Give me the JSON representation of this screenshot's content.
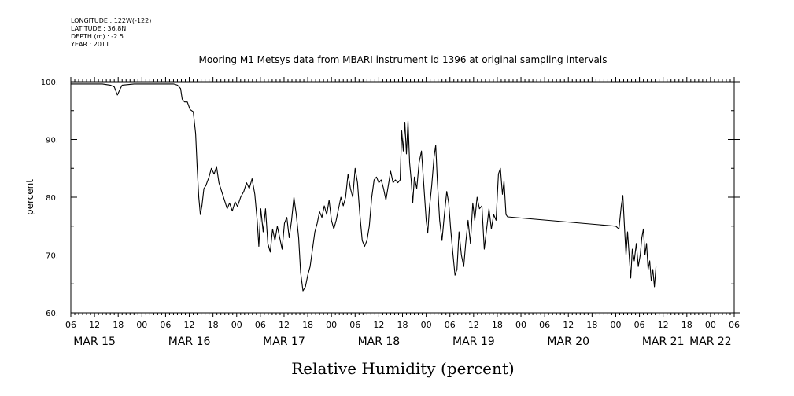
{
  "header": {
    "meta_lines": [
      "LONGITUDE : 122W(-122)",
      "LATITUDE : 36.8N",
      "DEPTH (m) : -2.5",
      "YEAR : 2011"
    ]
  },
  "chart_data": {
    "type": "line",
    "title": "Mooring M1 Metsys data from MBARI instrument id 1396 at original sampling intervals",
    "xlabel": "Relative Humidity (percent)",
    "ylabel": "percent",
    "ylim": [
      60,
      100
    ],
    "yticks": [
      60,
      70,
      80,
      90,
      100
    ],
    "ytick_labels": [
      "60.",
      "70.",
      "80.",
      "90.",
      "100."
    ],
    "x_units": "hours since MAR 15 2011 00:00",
    "xlim": [
      6,
      174
    ],
    "xticks": [
      6,
      12,
      18,
      24,
      30,
      36,
      42,
      48,
      54,
      60,
      66,
      72,
      78,
      84,
      90,
      96,
      102,
      108,
      114,
      120,
      126,
      132,
      138,
      144,
      150,
      156,
      162,
      168,
      174
    ],
    "xtick_labels": [
      "06",
      "12",
      "18",
      "00",
      "06",
      "12",
      "18",
      "00",
      "06",
      "12",
      "18",
      "00",
      "06",
      "12",
      "18",
      "00",
      "06",
      "12",
      "18",
      "00",
      "06",
      "12",
      "18",
      "00",
      "06",
      "12",
      "18",
      "00",
      "06"
    ],
    "day_labels": [
      {
        "label": "MAR 15",
        "at": 12
      },
      {
        "label": "MAR 16",
        "at": 36
      },
      {
        "label": "MAR 17",
        "at": 60
      },
      {
        "label": "MAR 18",
        "at": 84
      },
      {
        "label": "MAR 19",
        "at": 108
      },
      {
        "label": "MAR 20",
        "at": 132
      },
      {
        "label": "MAR 21",
        "at": 156
      },
      {
        "label": "MAR 22",
        "at": 168
      }
    ],
    "grid": false,
    "series": [
      {
        "points": [
          [
            6,
            99.6
          ],
          [
            10,
            99.6
          ],
          [
            14,
            99.6
          ],
          [
            16,
            99.4
          ],
          [
            17,
            99.1
          ],
          [
            17.8,
            97.7
          ],
          [
            18.4,
            98.6
          ],
          [
            19,
            99.4
          ],
          [
            22,
            99.6
          ],
          [
            26,
            99.6
          ],
          [
            30,
            99.6
          ],
          [
            32,
            99.6
          ],
          [
            33,
            99.4
          ],
          [
            33.8,
            98.8
          ],
          [
            34.2,
            97
          ],
          [
            34.8,
            96.5
          ],
          [
            35.5,
            96.5
          ],
          [
            36.2,
            95.2
          ],
          [
            37,
            94.8
          ],
          [
            37.6,
            91
          ],
          [
            38,
            85
          ],
          [
            38.4,
            80
          ],
          [
            38.8,
            77
          ],
          [
            39.2,
            78.5
          ],
          [
            39.7,
            81.5
          ],
          [
            40.2,
            82
          ],
          [
            41,
            83.5
          ],
          [
            41.6,
            85
          ],
          [
            42.3,
            84
          ],
          [
            42.9,
            85.3
          ],
          [
            43.5,
            82.5
          ],
          [
            44.2,
            81
          ],
          [
            44.9,
            79.5
          ],
          [
            45.6,
            78
          ],
          [
            46.2,
            79
          ],
          [
            46.9,
            77.6
          ],
          [
            47.6,
            79.2
          ],
          [
            48.2,
            78.4
          ],
          [
            49,
            80
          ],
          [
            49.8,
            81
          ],
          [
            50.5,
            82.5
          ],
          [
            51.2,
            81.5
          ],
          [
            51.9,
            83.2
          ],
          [
            52.6,
            80.5
          ],
          [
            53.2,
            76
          ],
          [
            53.6,
            71.5
          ],
          [
            54.1,
            78
          ],
          [
            54.7,
            74
          ],
          [
            55.3,
            78
          ],
          [
            55.9,
            72
          ],
          [
            56.5,
            70.5
          ],
          [
            57.1,
            74.5
          ],
          [
            57.7,
            72.5
          ],
          [
            58.3,
            75
          ],
          [
            58.9,
            73
          ],
          [
            59.5,
            71
          ],
          [
            60.1,
            75.5
          ],
          [
            60.7,
            76.5
          ],
          [
            61.3,
            73
          ],
          [
            61.9,
            76
          ],
          [
            62.5,
            80
          ],
          [
            63.1,
            77
          ],
          [
            63.7,
            73
          ],
          [
            64.2,
            67
          ],
          [
            64.8,
            63.8
          ],
          [
            65.4,
            64.5
          ],
          [
            66,
            66.5
          ],
          [
            66.6,
            68
          ],
          [
            67.2,
            71
          ],
          [
            67.8,
            74
          ],
          [
            68.4,
            75.5
          ],
          [
            69,
            77.5
          ],
          [
            69.6,
            76.5
          ],
          [
            70.2,
            78.5
          ],
          [
            70.8,
            77
          ],
          [
            71.4,
            79.5
          ],
          [
            72,
            76
          ],
          [
            72.6,
            74.5
          ],
          [
            73.2,
            76
          ],
          [
            73.8,
            78
          ],
          [
            74.4,
            80
          ],
          [
            75,
            78.5
          ],
          [
            75.6,
            80
          ],
          [
            76.2,
            84
          ],
          [
            76.8,
            81.5
          ],
          [
            77.4,
            80
          ],
          [
            78,
            85
          ],
          [
            78.6,
            82.5
          ],
          [
            79.2,
            77
          ],
          [
            79.8,
            72.5
          ],
          [
            80.4,
            71.5
          ],
          [
            81,
            72.5
          ],
          [
            81.6,
            75
          ],
          [
            82.2,
            80
          ],
          [
            82.8,
            83
          ],
          [
            83.4,
            83.5
          ],
          [
            84,
            82.5
          ],
          [
            84.6,
            83
          ],
          [
            85.2,
            81.5
          ],
          [
            85.8,
            79.5
          ],
          [
            86.4,
            82
          ],
          [
            87,
            84.5
          ],
          [
            87.6,
            82.5
          ],
          [
            88.2,
            83
          ],
          [
            88.8,
            82.5
          ],
          [
            89.4,
            83
          ],
          [
            89.8,
            91.5
          ],
          [
            90.2,
            88
          ],
          [
            90.6,
            93
          ],
          [
            91,
            87.5
          ],
          [
            91.4,
            93.2
          ],
          [
            91.8,
            86
          ],
          [
            92.2,
            83
          ],
          [
            92.6,
            79
          ],
          [
            93,
            83.5
          ],
          [
            93.6,
            81.5
          ],
          [
            94.2,
            86
          ],
          [
            94.8,
            88
          ],
          [
            95.4,
            82
          ],
          [
            96,
            76
          ],
          [
            96.4,
            73.8
          ],
          [
            96.8,
            78
          ],
          [
            97.4,
            82
          ],
          [
            98,
            87
          ],
          [
            98.4,
            89
          ],
          [
            98.8,
            83
          ],
          [
            99.4,
            76
          ],
          [
            100,
            72.5
          ],
          [
            100.6,
            77
          ],
          [
            101.2,
            81
          ],
          [
            101.7,
            79
          ],
          [
            102.2,
            74.5
          ],
          [
            102.8,
            70
          ],
          [
            103.3,
            66.5
          ],
          [
            103.8,
            67.5
          ],
          [
            104.3,
            74
          ],
          [
            104.9,
            70
          ],
          [
            105.5,
            68
          ],
          [
            106,
            72
          ],
          [
            106.6,
            76
          ],
          [
            107.2,
            72
          ],
          [
            107.8,
            79
          ],
          [
            108.3,
            76
          ],
          [
            108.9,
            80
          ],
          [
            109.5,
            78
          ],
          [
            110.1,
            78.5
          ],
          [
            110.7,
            71
          ],
          [
            111.3,
            74.5
          ],
          [
            111.9,
            78
          ],
          [
            112.5,
            74.5
          ],
          [
            113.1,
            77
          ],
          [
            113.7,
            76
          ],
          [
            114.3,
            84
          ],
          [
            114.8,
            85
          ],
          [
            115.3,
            80.5
          ],
          [
            115.7,
            82.8
          ],
          [
            116.2,
            77
          ],
          [
            116.6,
            76.6
          ],
          [
            144,
            75
          ],
          [
            144.8,
            74.5
          ],
          [
            145.4,
            78.5
          ],
          [
            145.8,
            80.3
          ],
          [
            146.2,
            75
          ],
          [
            146.6,
            70
          ],
          [
            147,
            74
          ],
          [
            147.4,
            70
          ],
          [
            147.8,
            66
          ],
          [
            148.2,
            71
          ],
          [
            148.7,
            69
          ],
          [
            149.2,
            72
          ],
          [
            149.7,
            68
          ],
          [
            150.2,
            70
          ],
          [
            150.6,
            73
          ],
          [
            151,
            74.5
          ],
          [
            151.4,
            70
          ],
          [
            151.8,
            72
          ],
          [
            152.2,
            67.5
          ],
          [
            152.6,
            69
          ],
          [
            153,
            65.5
          ],
          [
            153.4,
            67.5
          ],
          [
            153.8,
            64.5
          ],
          [
            154.2,
            68
          ]
        ]
      }
    ]
  }
}
